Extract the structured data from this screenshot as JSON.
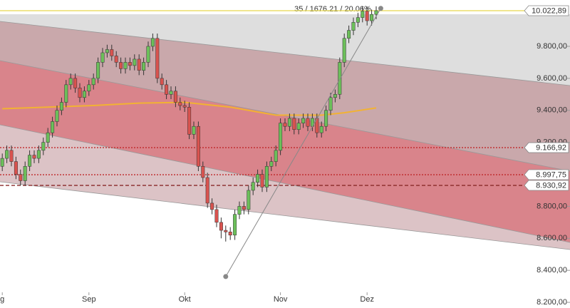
{
  "chart_data": {
    "type": "candlestick",
    "annotation": "35 / 1676.21 / 20.06%",
    "xlim": [
      -0.5,
      124.5
    ],
    "xticks": [
      {
        "value": 0,
        "label": "g"
      },
      {
        "value": 19,
        "label": "Sep"
      },
      {
        "value": 40,
        "label": "Okt"
      },
      {
        "value": 61,
        "label": "Nov"
      },
      {
        "value": 80,
        "label": "Dez"
      }
    ],
    "ylim": [
      8164.6,
      10089.6
    ],
    "yticks": [
      {
        "value": 8200,
        "label": "8.200,00"
      },
      {
        "value": 8400,
        "label": "8.400,00"
      },
      {
        "value": 8600,
        "label": "8.600,00"
      },
      {
        "value": 8800,
        "label": "8.800,00"
      },
      {
        "value": 9200,
        "label": "9.200,00"
      },
      {
        "value": 9400,
        "label": "9.400,00"
      },
      {
        "value": 9600,
        "label": "9.600,00"
      },
      {
        "value": 9800,
        "label": "9.800,00"
      }
    ],
    "up_color": "#6cbf5a",
    "down_color": "#d9534f",
    "open": [
      9050,
      9100,
      9150,
      9080,
      9000,
      8960,
      9050,
      9120,
      9100,
      9150,
      9200,
      9260,
      9330,
      9400,
      9450,
      9560,
      9600,
      9540,
      9480,
      9520,
      9560,
      9600,
      9700,
      9760,
      9780,
      9740,
      9700,
      9660,
      9700,
      9680,
      9720,
      9650,
      9700,
      9800,
      9850,
      9600,
      9560,
      9500,
      9520,
      9450,
      9430,
      9420,
      9250,
      9300,
      9050,
      8980,
      8820,
      8780,
      8700,
      8650,
      8640,
      8620,
      8750,
      8800,
      8780,
      8900,
      8950,
      9000,
      8920,
      9050,
      9080,
      9150,
      9320,
      9300,
      9350,
      9280,
      9320,
      9350,
      9300,
      9350,
      9260,
      9300,
      9400,
      9480,
      9500,
      9700,
      9850,
      9900,
      9950,
      9980,
      10020,
      9960,
      10000
    ],
    "high": [
      9130,
      9180,
      9180,
      9110,
      9030,
      9080,
      9150,
      9150,
      9180,
      9230,
      9290,
      9360,
      9430,
      9480,
      9590,
      9630,
      9630,
      9570,
      9550,
      9590,
      9630,
      9730,
      9790,
      9810,
      9810,
      9770,
      9730,
      9730,
      9730,
      9750,
      9750,
      9730,
      9830,
      9880,
      9880,
      9630,
      9590,
      9550,
      9550,
      9480,
      9460,
      9450,
      9330,
      9330,
      9080,
      9010,
      8850,
      8810,
      8730,
      8680,
      8670,
      8780,
      8830,
      8830,
      8930,
      8980,
      9030,
      9030,
      9080,
      9110,
      9180,
      9350,
      9350,
      9380,
      9380,
      9350,
      9380,
      9380,
      9380,
      9380,
      9330,
      9430,
      9510,
      9530,
      9730,
      9880,
      9930,
      9980,
      10010,
      10050,
      10050,
      10030,
      10050
    ],
    "low": [
      9020,
      9070,
      9050,
      8970,
      8930,
      8930,
      9020,
      9070,
      9070,
      9120,
      9170,
      9230,
      9300,
      9370,
      9420,
      9530,
      9510,
      9450,
      9450,
      9490,
      9530,
      9570,
      9670,
      9730,
      9710,
      9670,
      9630,
      9630,
      9650,
      9650,
      9620,
      9620,
      9670,
      9770,
      9570,
      9530,
      9470,
      9470,
      9420,
      9400,
      9390,
      9220,
      9220,
      9020,
      8950,
      8790,
      8750,
      8670,
      8600,
      8580,
      8590,
      8590,
      8720,
      8750,
      8750,
      8870,
      8920,
      8890,
      8890,
      9020,
      9050,
      9120,
      9270,
      9270,
      9250,
      9250,
      9290,
      9270,
      9270,
      9230,
      9230,
      9270,
      9370,
      9450,
      9470,
      9670,
      9820,
      9870,
      9920,
      9950,
      9930,
      9930,
      9970
    ],
    "close": [
      9100,
      9150,
      9080,
      9000,
      8960,
      9050,
      9120,
      9100,
      9150,
      9200,
      9260,
      9330,
      9400,
      9450,
      9560,
      9600,
      9540,
      9480,
      9520,
      9560,
      9600,
      9700,
      9760,
      9780,
      9740,
      9700,
      9660,
      9700,
      9680,
      9720,
      9650,
      9700,
      9800,
      9850,
      9600,
      9560,
      9500,
      9520,
      9450,
      9430,
      9420,
      9250,
      9300,
      9050,
      8980,
      8820,
      8780,
      8700,
      8650,
      8640,
      8620,
      8750,
      8800,
      8780,
      8900,
      8950,
      9000,
      8920,
      9050,
      9080,
      9150,
      9320,
      9300,
      9350,
      9280,
      9320,
      9350,
      9300,
      9350,
      9260,
      9300,
      9400,
      9480,
      9500,
      9700,
      9850,
      9900,
      9950,
      9980,
      10020,
      9960,
      10000,
      10022.89
    ],
    "moving_average": {
      "color": "#f2b233",
      "x": [
        0,
        10,
        20,
        30,
        40,
        50,
        60,
        70,
        75,
        82
      ],
      "values": [
        9410,
        9420,
        9430,
        9445,
        9450,
        9420,
        9370,
        9370,
        9385,
        9415
      ]
    },
    "trendline": {
      "color": "#888888",
      "x": [
        49,
        83
      ],
      "values": [
        8361,
        10037.21
      ]
    },
    "levels": [
      {
        "value": 9166.92,
        "label": "9.166,92",
        "style": "dotted",
        "color": "#c0282a"
      },
      {
        "value": 8997.75,
        "label": "8.997,75",
        "style": "dotted",
        "color": "#c0282a"
      },
      {
        "value": 8930.92,
        "label": "8.930,92",
        "style": "dashed",
        "color": "#8a2a2a"
      }
    ],
    "last": {
      "value": 10022.89,
      "label": "10.022,89",
      "color": "#e6d84a"
    }
  }
}
